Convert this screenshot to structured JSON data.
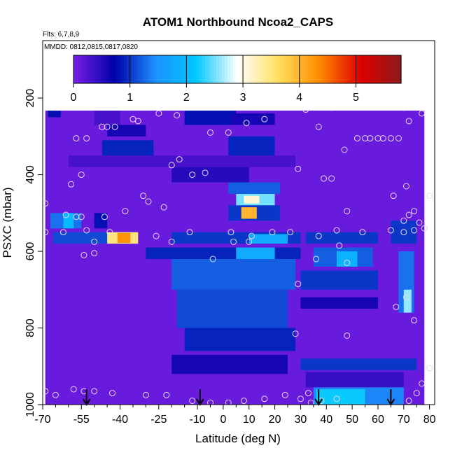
{
  "chart_data": {
    "type": "heatmap",
    "title": "ATOM1 Northbound Ncoa2_CAPS",
    "annotations": [
      "Flts: 6,7,8,9",
      "MMDD: 0812,0815,0817,0820"
    ],
    "xlabel": "Latitude (deg N)",
    "ylabel": "PSXC (mbar)",
    "xlim": [
      -70,
      82
    ],
    "ylim": [
      1000,
      50
    ],
    "y_reversed": true,
    "x_ticks": [
      -70,
      -55,
      -40,
      -25,
      -10,
      0,
      10,
      20,
      30,
      40,
      50,
      60,
      70,
      80
    ],
    "x_tick_labels": [
      "-70",
      "-55",
      "-40",
      "-25",
      "-10",
      "0",
      "10",
      "20",
      "30",
      "40",
      "50",
      "60",
      "70",
      "80"
    ],
    "y_ticks": [
      200,
      400,
      600,
      800,
      1000
    ],
    "y_tick_labels": [
      "200",
      "400",
      "600",
      "800",
      "1000"
    ],
    "colorbar": {
      "range": [
        0,
        5.8
      ],
      "ticks": [
        0,
        1,
        2,
        3,
        4,
        5
      ],
      "tick_labels": [
        "0",
        "1",
        "2",
        "3",
        "4",
        "5"
      ],
      "colors": [
        "#7a1fe6",
        "#0000a8",
        "#1e90ff",
        "#00c8ff",
        "#ffffff",
        "#ffe060",
        "#ff8c00",
        "#e00000",
        "#8b1a1a"
      ]
    },
    "grid": false,
    "background_value": 0.1,
    "patches": [
      {
        "lat": [
          -68,
          -63
        ],
        "p": [
          170,
          250
        ],
        "v": 0.8
      },
      {
        "lat": [
          -50,
          -40
        ],
        "p": [
          230,
          270
        ],
        "v": 0.3
      },
      {
        "lat": [
          -45,
          -30
        ],
        "p": [
          270,
          300
        ],
        "v": 0.6
      },
      {
        "lat": [
          -47,
          -27
        ],
        "p": [
          310,
          360
        ],
        "v": 0.9
      },
      {
        "lat": [
          -15,
          5
        ],
        "p": [
          220,
          270
        ],
        "v": 0.8
      },
      {
        "lat": [
          3,
          20
        ],
        "p": [
          240,
          270
        ],
        "v": 0.6
      },
      {
        "lat": [
          2,
          20
        ],
        "p": [
          300,
          350
        ],
        "v": 0.9
      },
      {
        "lat": [
          -60,
          28
        ],
        "p": [
          350,
          380
        ],
        "v": 0.3
      },
      {
        "lat": [
          -20,
          10
        ],
        "p": [
          380,
          420
        ],
        "v": 0.5
      },
      {
        "lat": [
          2,
          22
        ],
        "p": [
          420,
          450
        ],
        "v": 1.2
      },
      {
        "lat": [
          5,
          20
        ],
        "p": [
          450,
          480
        ],
        "v": 2.5
      },
      {
        "lat": [
          8,
          14
        ],
        "p": [
          455,
          475
        ],
        "v": 3.1
      },
      {
        "lat": [
          2,
          22
        ],
        "p": [
          480,
          520
        ],
        "v": 1.0
      },
      {
        "lat": [
          7,
          13
        ],
        "p": [
          485,
          515
        ],
        "v": 4.0
      },
      {
        "lat": [
          -67,
          -55
        ],
        "p": [
          500,
          540
        ],
        "v": 1.3
      },
      {
        "lat": [
          -62,
          -58
        ],
        "p": [
          500,
          540
        ],
        "v": 2.0
      },
      {
        "lat": [
          -50,
          -45
        ],
        "p": [
          500,
          540
        ],
        "v": 0.8
      },
      {
        "lat": [
          -66,
          -40
        ],
        "p": [
          550,
          580
        ],
        "v": 1.1
      },
      {
        "lat": [
          -45,
          -33
        ],
        "p": [
          550,
          580
        ],
        "v": 3.5
      },
      {
        "lat": [
          -41,
          -36
        ],
        "p": [
          552,
          578
        ],
        "v": 4.3
      },
      {
        "lat": [
          -20,
          30
        ],
        "p": [
          550,
          580
        ],
        "v": 1.0
      },
      {
        "lat": [
          10,
          25
        ],
        "p": [
          555,
          580
        ],
        "v": 1.8
      },
      {
        "lat": [
          32,
          60
        ],
        "p": [
          550,
          580
        ],
        "v": 1.0
      },
      {
        "lat": [
          65,
          75
        ],
        "p": [
          520,
          580
        ],
        "v": 1.0
      },
      {
        "lat": [
          -30,
          30
        ],
        "p": [
          590,
          620
        ],
        "v": 0.9
      },
      {
        "lat": [
          5,
          20
        ],
        "p": [
          590,
          620
        ],
        "v": 1.8
      },
      {
        "lat": [
          35,
          58
        ],
        "p": [
          590,
          640
        ],
        "v": 1.2
      },
      {
        "lat": [
          44,
          52
        ],
        "p": [
          600,
          640
        ],
        "v": 1.9
      },
      {
        "lat": [
          -20,
          28
        ],
        "p": [
          620,
          700
        ],
        "v": 1.2
      },
      {
        "lat": [
          30,
          60
        ],
        "p": [
          650,
          700
        ],
        "v": 1.0
      },
      {
        "lat": [
          -18,
          25
        ],
        "p": [
          700,
          800
        ],
        "v": 1.1
      },
      {
        "lat": [
          30,
          60
        ],
        "p": [
          720,
          750
        ],
        "v": 0.6
      },
      {
        "lat": [
          68,
          74
        ],
        "p": [
          600,
          760
        ],
        "v": 1.3
      },
      {
        "lat": [
          70,
          73
        ],
        "p": [
          700,
          760
        ],
        "v": 2.6
      },
      {
        "lat": [
          -15,
          28
        ],
        "p": [
          800,
          860
        ],
        "v": 0.9
      },
      {
        "lat": [
          -20,
          25
        ],
        "p": [
          870,
          920
        ],
        "v": 0.6
      },
      {
        "lat": [
          30,
          75
        ],
        "p": [
          880,
          910
        ],
        "v": 1.0
      },
      {
        "lat": [
          32,
          70
        ],
        "p": [
          915,
          955
        ],
        "v": 0.4
      },
      {
        "lat": [
          35,
          70
        ],
        "p": [
          955,
          1000
        ],
        "v": 1.4
      },
      {
        "lat": [
          36,
          55
        ],
        "p": [
          960,
          1000
        ],
        "v": 2.2
      }
    ],
    "points": [
      {
        "lat": -69,
        "p": 225
      },
      {
        "lat": -68,
        "p": 210
      },
      {
        "lat": -67,
        "p": 210
      },
      {
        "lat": -66,
        "p": 210
      },
      {
        "lat": -64,
        "p": 205
      },
      {
        "lat": -60,
        "p": 195
      },
      {
        "lat": -57,
        "p": 305
      },
      {
        "lat": -53,
        "p": 305
      },
      {
        "lat": -47,
        "p": 275
      },
      {
        "lat": -45,
        "p": 275
      },
      {
        "lat": -42,
        "p": 275
      },
      {
        "lat": -35,
        "p": 255
      },
      {
        "lat": -33,
        "p": 260
      },
      {
        "lat": -25,
        "p": 240
      },
      {
        "lat": -18,
        "p": 245
      },
      {
        "lat": -13,
        "p": 215
      },
      {
        "lat": -5,
        "p": 290
      },
      {
        "lat": 2,
        "p": 290
      },
      {
        "lat": 9,
        "p": 265
      },
      {
        "lat": 16,
        "p": 255
      },
      {
        "lat": 32,
        "p": 230
      },
      {
        "lat": 37,
        "p": 275
      },
      {
        "lat": 42,
        "p": 225
      },
      {
        "lat": 52,
        "p": 305
      },
      {
        "lat": 55,
        "p": 305
      },
      {
        "lat": 57,
        "p": 305
      },
      {
        "lat": 60,
        "p": 305
      },
      {
        "lat": 62,
        "p": 305
      },
      {
        "lat": 65,
        "p": 305
      },
      {
        "lat": 68,
        "p": 305
      },
      {
        "lat": 70,
        "p": 225
      },
      {
        "lat": 72,
        "p": 260
      },
      {
        "lat": 75,
        "p": 225
      },
      {
        "lat": 77,
        "p": 240
      },
      {
        "lat": 47,
        "p": 335
      },
      {
        "lat": -55,
        "p": 400
      },
      {
        "lat": -20,
        "p": 375
      },
      {
        "lat": -17,
        "p": 360
      },
      {
        "lat": -12,
        "p": 400
      },
      {
        "lat": -7,
        "p": 395
      },
      {
        "lat": 29,
        "p": 385
      },
      {
        "lat": 39,
        "p": 410
      },
      {
        "lat": 42,
        "p": 410
      },
      {
        "lat": -59,
        "p": 425
      },
      {
        "lat": -31,
        "p": 455
      },
      {
        "lat": -29,
        "p": 470
      },
      {
        "lat": -23,
        "p": 485
      },
      {
        "lat": 71,
        "p": 430
      },
      {
        "lat": 80,
        "p": 455
      },
      {
        "lat": 66,
        "p": 455
      },
      {
        "lat": -69,
        "p": 475
      },
      {
        "lat": -61,
        "p": 505
      },
      {
        "lat": -57,
        "p": 510
      },
      {
        "lat": -55,
        "p": 510
      },
      {
        "lat": -46,
        "p": 510
      },
      {
        "lat": -38,
        "p": 495
      },
      {
        "lat": 48,
        "p": 495
      },
      {
        "lat": 70,
        "p": 520
      },
      {
        "lat": 72,
        "p": 505
      },
      {
        "lat": 74,
        "p": 495
      },
      {
        "lat": -69,
        "p": 550
      },
      {
        "lat": -62,
        "p": 550
      },
      {
        "lat": -53,
        "p": 545
      },
      {
        "lat": -44,
        "p": 550
      },
      {
        "lat": -26,
        "p": 560
      },
      {
        "lat": -13,
        "p": 550
      },
      {
        "lat": 3,
        "p": 550
      },
      {
        "lat": 11,
        "p": 560
      },
      {
        "lat": 19,
        "p": 550
      },
      {
        "lat": 26,
        "p": 550
      },
      {
        "lat": 37,
        "p": 560
      },
      {
        "lat": 44,
        "p": 545
      },
      {
        "lat": 54,
        "p": 550
      },
      {
        "lat": 65,
        "p": 545
      },
      {
        "lat": 70,
        "p": 550
      },
      {
        "lat": 74,
        "p": 545
      },
      {
        "lat": 76,
        "p": 525
      },
      {
        "lat": 78,
        "p": 540
      },
      {
        "lat": -50,
        "p": 575
      },
      {
        "lat": -20,
        "p": 575
      },
      {
        "lat": 4,
        "p": 575
      },
      {
        "lat": 10,
        "p": 575
      },
      {
        "lat": 45,
        "p": 585
      },
      {
        "lat": -54,
        "p": 610
      },
      {
        "lat": -50,
        "p": 605
      },
      {
        "lat": -4,
        "p": 620
      },
      {
        "lat": 36,
        "p": 620
      },
      {
        "lat": 48,
        "p": 630
      },
      {
        "lat": 29,
        "p": 685
      },
      {
        "lat": 71,
        "p": 720
      },
      {
        "lat": 67,
        "p": 745
      },
      {
        "lat": 74,
        "p": 780
      },
      {
        "lat": 28,
        "p": 815
      },
      {
        "lat": 48,
        "p": 820
      },
      {
        "lat": 80,
        "p": 905
      },
      {
        "lat": 77,
        "p": 945
      },
      {
        "lat": -69,
        "p": 965
      },
      {
        "lat": -65,
        "p": 975
      },
      {
        "lat": -58,
        "p": 960
      },
      {
        "lat": -54,
        "p": 965
      },
      {
        "lat": -50,
        "p": 965
      },
      {
        "lat": -43,
        "p": 970
      },
      {
        "lat": -30,
        "p": 975
      },
      {
        "lat": -22,
        "p": 975
      },
      {
        "lat": -12,
        "p": 990
      },
      {
        "lat": -5,
        "p": 995
      },
      {
        "lat": 2,
        "p": 995
      },
      {
        "lat": 8,
        "p": 990
      },
      {
        "lat": 16,
        "p": 985
      },
      {
        "lat": 24,
        "p": 975
      },
      {
        "lat": 30,
        "p": 985
      },
      {
        "lat": 33,
        "p": 970
      },
      {
        "lat": 34,
        "p": 995
      },
      {
        "lat": 38,
        "p": 990
      },
      {
        "lat": 44,
        "p": 985
      },
      {
        "lat": 72,
        "p": 990
      },
      {
        "lat": 75,
        "p": 970
      }
    ],
    "arrows": [
      {
        "lat": -53,
        "p_from": 960,
        "p_to": 1000
      },
      {
        "lat": -9,
        "p_from": 960,
        "p_to": 1000
      },
      {
        "lat": 37,
        "p_from": 960,
        "p_to": 1000
      },
      {
        "lat": 65,
        "p_from": 960,
        "p_to": 1000
      }
    ],
    "data_extent": {
      "lat": [
        -69,
        78
      ],
      "p": [
        170,
        1000
      ]
    },
    "legend": "colorbar-top"
  }
}
